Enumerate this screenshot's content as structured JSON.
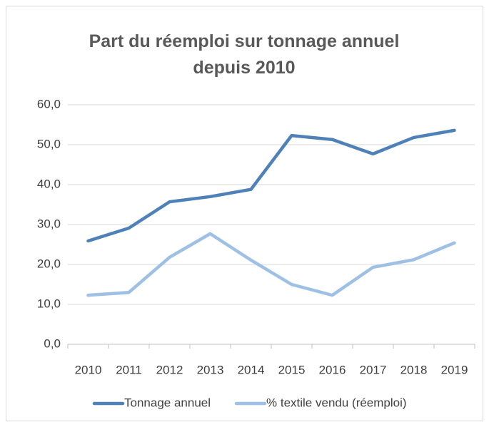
{
  "chart_data": {
    "type": "line",
    "title": "Part du réemploi sur tonnage annuel depuis 2010",
    "categories": [
      "2010",
      "2011",
      "2012",
      "2013",
      "2014",
      "2015",
      "2016",
      "2017",
      "2018",
      "2019"
    ],
    "series": [
      {
        "name": "Tonnage annuel",
        "color": "#4f81b9",
        "values": [
          25.9,
          29.1,
          35.7,
          37.0,
          38.8,
          52.3,
          51.3,
          47.7,
          51.8,
          53.6
        ]
      },
      {
        "name": "% textile vendu (réemploi)",
        "color": "#9dc0e4",
        "values": [
          12.3,
          13.0,
          21.8,
          27.7,
          21.1,
          15.0,
          12.3,
          19.3,
          21.2,
          25.4
        ]
      }
    ],
    "ylim": [
      0,
      60
    ],
    "yticks": [
      {
        "value": 0,
        "label": "0,0"
      },
      {
        "value": 10,
        "label": "10,0"
      },
      {
        "value": 20,
        "label": "20,0"
      },
      {
        "value": 30,
        "label": "30,0"
      },
      {
        "value": 40,
        "label": "40,0"
      },
      {
        "value": 50,
        "label": "50,0"
      },
      {
        "value": 60,
        "label": "60,0"
      }
    ],
    "grid": true,
    "legend": "bottom"
  }
}
